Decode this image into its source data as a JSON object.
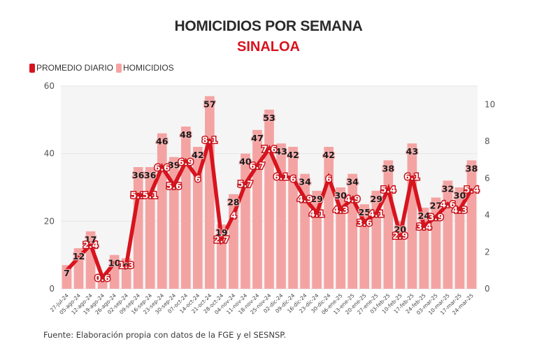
{
  "header": {
    "title": "HOMICIDIOS POR SEMANA",
    "subtitle": "SINALOA"
  },
  "legend": [
    {
      "label": "PROMEDIO DIARIO",
      "color": "#d7141e"
    },
    {
      "label": "HOMICIDIOS",
      "color": "#f4a3a3"
    }
  ],
  "source": "Fuente: Elaboración propia con datos de la FGE y el SESNSP.",
  "chart_data": {
    "type": "bar",
    "title": "HOMICIDIOS POR SEMANA",
    "subtitle": "SINALOA",
    "xlabel": "",
    "ylabel": "",
    "categories": [
      "27-jul-24",
      "05-ago-24",
      "12-ago-24",
      "19-ago-24",
      "26-ago-24",
      "02-sep-24",
      "09-sep-24",
      "16-sep-24",
      "23-sep-24",
      "30-sep-24",
      "07-oct-24",
      "14-oct-24",
      "21-oct-24",
      "28-oct-24",
      "04-nov-24",
      "11-nov-24",
      "18-nov-24",
      "25-nov-24",
      "02-dic-24",
      "09-dic-24",
      "16-dic-24",
      "23-dic-24",
      "30-dic-24",
      "06-ene-25",
      "13-ene-25",
      "20-ene-25",
      "27-ene-25",
      "03-feb-25",
      "10-feb-25",
      "17-feb-25",
      "24-feb-25",
      "03-mar-25",
      "10-mar-25",
      "17-mar-25",
      "24-mar-25"
    ],
    "series": [
      {
        "name": "HOMICIDIOS",
        "type": "bar",
        "axis": "left",
        "color": "#f4a3a3",
        "values": [
          7,
          12,
          17,
          4,
          10,
          9,
          36,
          36,
          46,
          39,
          48,
          42,
          57,
          19,
          28,
          40,
          47,
          53,
          43,
          42,
          34,
          29,
          42,
          30,
          34,
          25,
          29,
          38,
          20,
          43,
          24,
          27,
          32,
          30,
          38
        ]
      },
      {
        "name": "PROMEDIO DIARIO",
        "type": "line",
        "axis": "right",
        "color": "#d7141e",
        "values": [
          1.0,
          1.7,
          2.4,
          0.6,
          1.4,
          1.3,
          5.1,
          5.1,
          6.6,
          5.6,
          6.9,
          6,
          8.1,
          2.7,
          4,
          5.7,
          6.7,
          7.6,
          6.1,
          6,
          4.9,
          4.1,
          6,
          4.3,
          4.9,
          3.6,
          4.1,
          5.4,
          2.9,
          6.1,
          3.4,
          3.9,
          4.6,
          4.3,
          5.4
        ]
      }
    ],
    "bar_labels": [
      "7",
      "12",
      "17",
      "",
      "10",
      "9",
      "36",
      "36",
      "46",
      "39",
      "48",
      "42",
      "57",
      "19",
      "28",
      "40",
      "47",
      "53",
      "43",
      "42",
      "34",
      "29",
      "42",
      "30",
      "34",
      "25",
      "29",
      "38",
      "20",
      "43",
      "24",
      "27",
      "32",
      "30",
      "38"
    ],
    "line_labels": [
      "",
      "",
      "2.4",
      "0.6",
      "",
      "1.3",
      "5.1",
      "5.1",
      "6.6",
      "5.6",
      "6.9",
      "6",
      "8.1",
      "2.7",
      "4",
      "5.7",
      "6.7",
      "7.6",
      "6.1",
      "6",
      "4.9",
      "4.1",
      "6",
      "4.3",
      "4.9",
      "3.6",
      "4.1",
      "5.4",
      "2.9",
      "6.1",
      "3.4",
      "3.9",
      "4.6",
      "4.3",
      "5.4"
    ],
    "y_left": {
      "ylim": [
        0,
        60
      ],
      "ticks": [
        "0",
        "20",
        "40",
        "60"
      ]
    },
    "y_right": {
      "ylim": [
        0,
        11
      ],
      "ticks": [
        "0",
        "2",
        "4",
        "6",
        "8",
        "10"
      ]
    },
    "legend_position": "top-left",
    "grid": true
  }
}
